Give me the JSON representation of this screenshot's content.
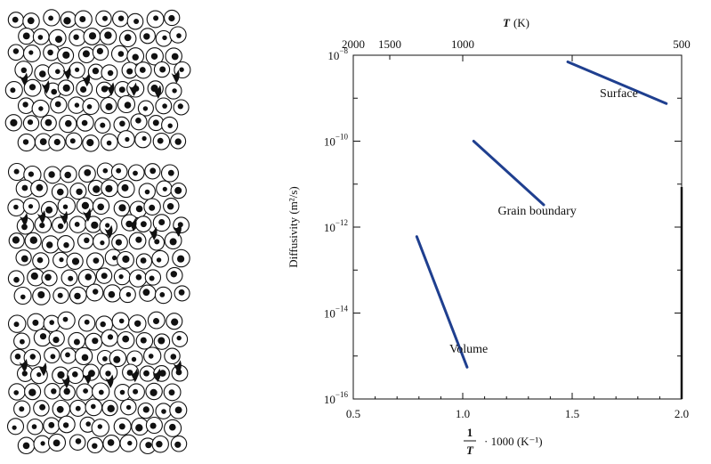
{
  "atom_panels": {
    "count": 3
  },
  "chart_data": {
    "type": "line",
    "top_axis": {
      "title_var": "T",
      "title_unit": "(K)",
      "ticks": [
        2000,
        1500,
        1000,
        500
      ]
    },
    "x": {
      "ticks": [
        "0.5",
        "1.0",
        "1.5",
        "2.0"
      ],
      "xlim": [
        0.5,
        2.0
      ],
      "label_fraction_num": "1",
      "label_fraction_den": "T",
      "label_rest": "· 1000 (K⁻¹)"
    },
    "y": {
      "scale": "log",
      "ylim": [
        1e-16,
        1e-08
      ],
      "label": "Diffusivity (m²/s)",
      "tick_exponents": [
        -8,
        -10,
        -12,
        -14,
        -16
      ]
    },
    "grid": false,
    "series": [
      {
        "name": "Surface",
        "color": "#1f3f8f",
        "x": [
          1.48,
          1.93
        ],
        "y": [
          7e-09,
          7.5e-10
        ]
      },
      {
        "name": "Grain boundary",
        "color": "#1f3f8f",
        "x": [
          1.05,
          1.37
        ],
        "y": [
          1e-10,
          3.3e-12
        ]
      },
      {
        "name": "Volume",
        "color": "#1f3f8f",
        "x": [
          0.79,
          1.02
        ],
        "y": [
          6e-13,
          5.5e-16
        ]
      }
    ]
  }
}
